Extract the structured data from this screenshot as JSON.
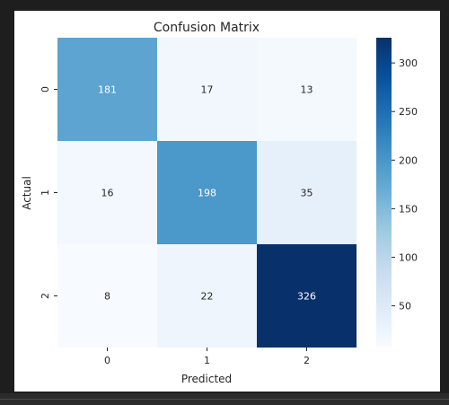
{
  "chart_data": {
    "type": "heatmap",
    "title": "Confusion Matrix",
    "xlabel": "Predicted",
    "ylabel": "Actual",
    "x_categories": [
      "0",
      "1",
      "2"
    ],
    "y_categories": [
      "0",
      "1",
      "2"
    ],
    "values": [
      [
        181,
        17,
        13
      ],
      [
        16,
        198,
        35
      ],
      [
        8,
        22,
        326
      ]
    ],
    "colormap": "Blues",
    "vmin": 8,
    "vmax": 326,
    "colorbar_ticks": [
      50,
      100,
      150,
      200,
      250,
      300
    ],
    "grid": false
  },
  "colors": {
    "background": "#1e1e1e",
    "canvas": "#ffffff",
    "text": "#262626",
    "annotation_light": "#ffffff",
    "annotation_dark": "#262626"
  }
}
